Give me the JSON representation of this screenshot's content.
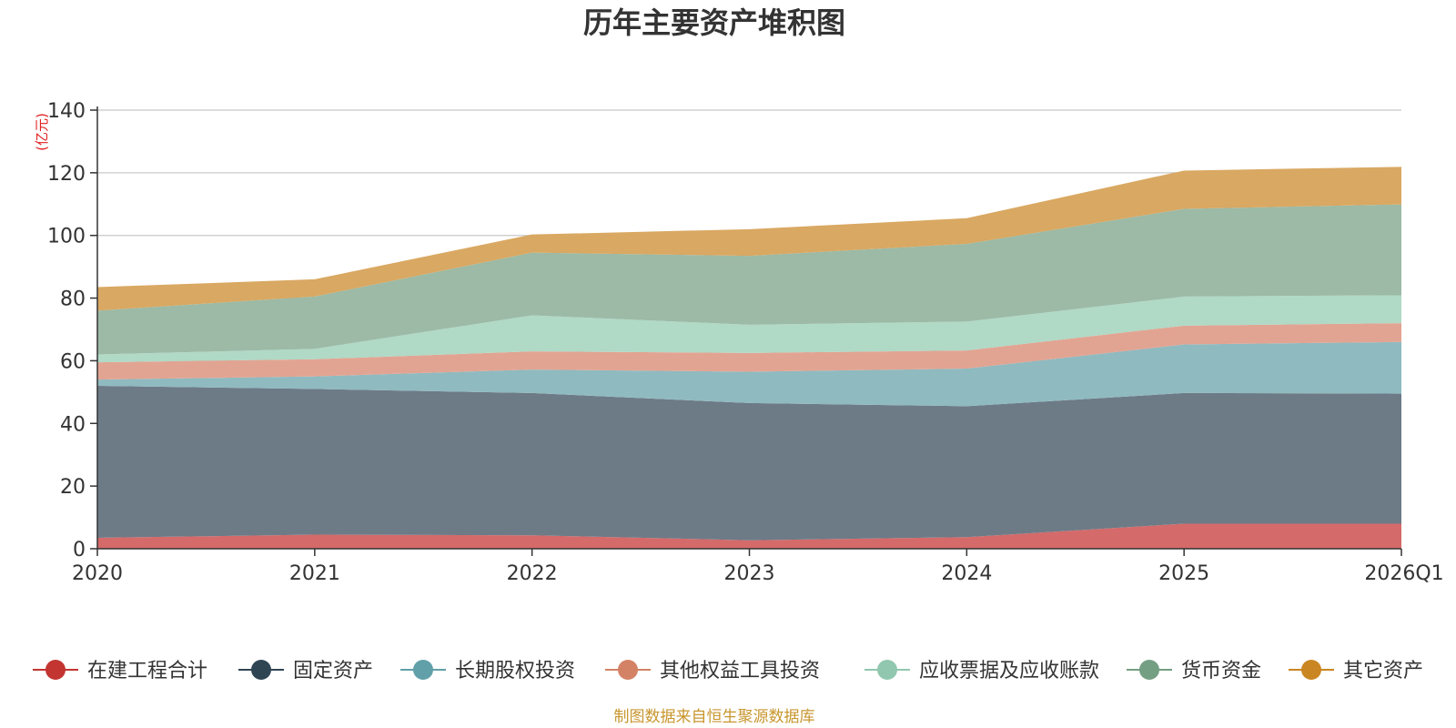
{
  "chart_data": {
    "type": "area",
    "stacked": true,
    "title": "历年主要资产堆积图",
    "unit_label": "(亿元)",
    "x": [
      "2020",
      "2021",
      "2022",
      "2023",
      "2024",
      "2025",
      "2026Q1"
    ],
    "ylim": [
      0,
      140
    ],
    "yticks": [
      0,
      20,
      40,
      60,
      80,
      100,
      120,
      140
    ],
    "grid": true,
    "legend_position": "bottom",
    "series": [
      {
        "name": "在建工程合计",
        "color": "#c23531",
        "fill": "#d46a6a",
        "values": [
          3.5,
          4.5,
          4.3,
          2.7,
          3.7,
          8.0,
          8.0
        ]
      },
      {
        "name": "固定资产",
        "color": "#2f4554",
        "fill": "#6d7b87",
        "values": [
          48.5,
          46.5,
          45.4,
          43.8,
          41.8,
          41.7,
          41.5
        ]
      },
      {
        "name": "长期股权投资",
        "color": "#61a0a8",
        "fill": "#8fbac0",
        "values": [
          2.0,
          4.0,
          7.5,
          10.0,
          12.0,
          15.5,
          16.5
        ]
      },
      {
        "name": "其他权益工具投资",
        "color": "#d48265",
        "fill": "#e2a492",
        "values": [
          5.5,
          5.5,
          5.8,
          6.0,
          5.8,
          6.0,
          6.0
        ]
      },
      {
        "name": "应收票据及应收账款",
        "color": "#91c7ae",
        "fill": "#b0d9c6",
        "values": [
          2.5,
          3.3,
          11.5,
          9.0,
          9.2,
          9.3,
          8.9
        ]
      },
      {
        "name": "货币资金",
        "color": "#749f83",
        "fill": "#9cbaa6",
        "values": [
          14.0,
          16.7,
          20.0,
          22.0,
          24.8,
          28.0,
          29.0
        ]
      },
      {
        "name": "其它资产",
        "color": "#ca8622",
        "fill": "#d9a862",
        "values": [
          7.5,
          5.5,
          5.8,
          8.5,
          8.2,
          12.2,
          12.0
        ]
      }
    ]
  },
  "source_note": "制图数据来自恒生聚源数据库"
}
